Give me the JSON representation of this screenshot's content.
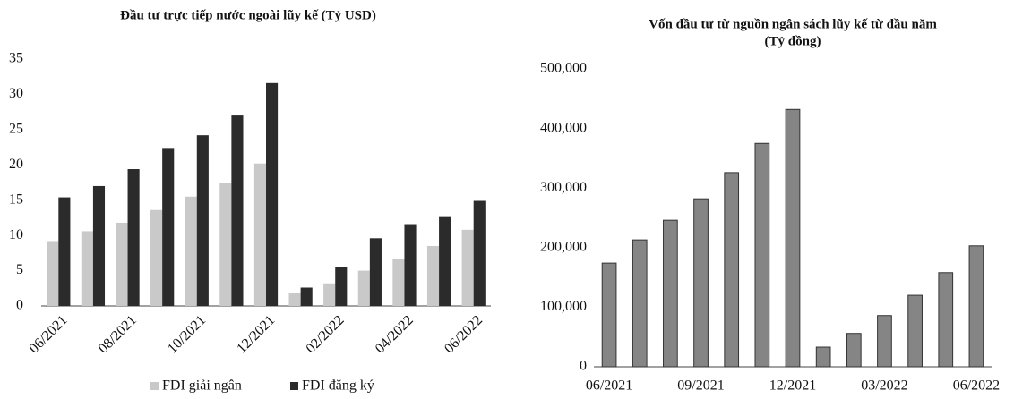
{
  "chart_data": [
    {
      "type": "bar",
      "title": "Đầu tư trực tiếp nước ngoài lũy kế (Tỷ USD)",
      "categories": [
        "06/2021",
        null,
        "08/2021",
        null,
        "10/2021",
        null,
        "12/2021",
        null,
        "02/2022",
        null,
        "04/2022",
        null,
        "06/2022"
      ],
      "series": [
        {
          "name": "FDI giải ngân",
          "color": "#c9c9c9",
          "values": [
            9.2,
            10.6,
            11.8,
            13.6,
            15.5,
            17.5,
            20.2,
            1.9,
            3.2,
            5.0,
            6.6,
            8.5,
            10.8
          ]
        },
        {
          "name": "FDI đăng ký",
          "color": "#2b2b2b",
          "values": [
            15.4,
            17.0,
            19.4,
            22.4,
            24.2,
            27.0,
            31.6,
            2.6,
            5.5,
            9.6,
            11.6,
            12.6,
            14.9
          ]
        }
      ],
      "ylim": [
        0,
        35
      ],
      "yticks": [
        0,
        5,
        10,
        15,
        20,
        25,
        30,
        35
      ],
      "legend": "bottom"
    },
    {
      "type": "bar",
      "title": [
        "Vốn đầu tư từ nguồn ngân sách lũy kế từ đầu năm",
        "(Tỷ đồng)"
      ],
      "categories": [
        "06/2021",
        null,
        null,
        "09/2021",
        null,
        null,
        "12/2021",
        null,
        null,
        "03/2022",
        null,
        null,
        "06/2022"
      ],
      "values": [
        174000,
        213000,
        246000,
        282000,
        326000,
        375000,
        432000,
        33000,
        56000,
        86000,
        120000,
        158000,
        203000
      ],
      "color": "#858585",
      "ylim": [
        0,
        500000
      ],
      "yticks": [
        0,
        {
          "value": 100000,
          "label": "100,000"
        },
        {
          "value": 200000,
          "label": "200,000"
        },
        {
          "value": 300000,
          "label": "300,000"
        },
        {
          "value": 400000,
          "label": "400,000"
        },
        {
          "value": 500000,
          "label": "500,000"
        }
      ]
    }
  ]
}
